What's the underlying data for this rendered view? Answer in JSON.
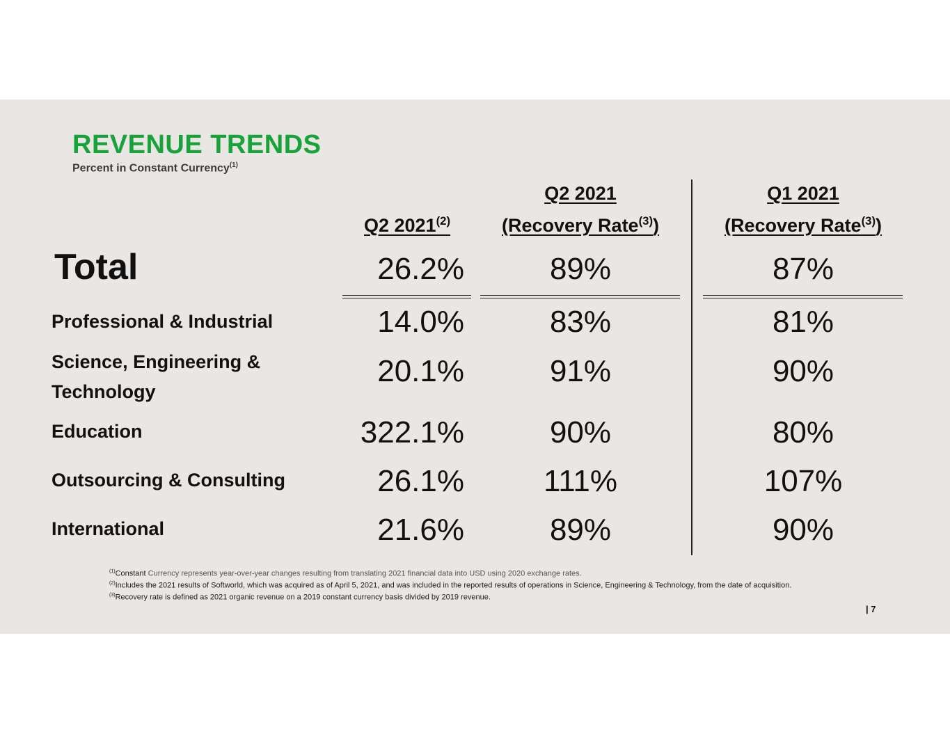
{
  "header": {
    "title": "REVENUE TRENDS",
    "subtitle": "Percent in Constant Currency",
    "subtitle_note": "(1)"
  },
  "columns": {
    "col1_line2": "Q2 2021",
    "col1_note": "(2)",
    "col2_line1": "Q2 2021",
    "col2_line2_open": "(Recovery Rate",
    "col2_note": "(3)",
    "col2_line2_close": ")",
    "col3_line1": "Q1 2021",
    "col3_line2_open": "(Recovery Rate",
    "col3_note": "(3)",
    "col3_line2_close": ")"
  },
  "total": {
    "label": "Total",
    "q2": "26.2%",
    "q2_recovery": "89%",
    "q1_recovery": "87%"
  },
  "rows": [
    {
      "label": "Professional & Industrial",
      "q2": "14.0%",
      "q2_recovery": "83%",
      "q1_recovery": "81%"
    },
    {
      "label_line1": "Science, Engineering &",
      "label_line2": "Technology",
      "q2": "20.1%",
      "q2_recovery": "91%",
      "q1_recovery": "90%"
    },
    {
      "label": "Education",
      "q2": "322.1%",
      "q2_recovery": "90%",
      "q1_recovery": "80%"
    },
    {
      "label": "Outsourcing & Consulting",
      "q2": "26.1%",
      "q2_recovery": "111%",
      "q1_recovery": "107%"
    },
    {
      "label": "International",
      "q2": "21.6%",
      "q2_recovery": "89%",
      "q1_recovery": "90%"
    }
  ],
  "footnotes": {
    "n1_mark": "(1)",
    "n1_lead": "Constant",
    "n1_text": " Currency represents year-over-year changes resulting from translating 2021 financial data into USD using 2020 exchange rates.",
    "n2_mark": "(2)",
    "n2_text": "Includes the 2021 results of Softworld, which was acquired as of April 5, 2021, and was included in the reported results of operations in Science, Engineering & Technology, from the date of acquisition.",
    "n3_mark": "(3)",
    "n3_text": "Recovery rate is defined as 2021 organic revenue on a 2019 constant currency basis divided by 2019 revenue."
  },
  "page_number": "| 7"
}
